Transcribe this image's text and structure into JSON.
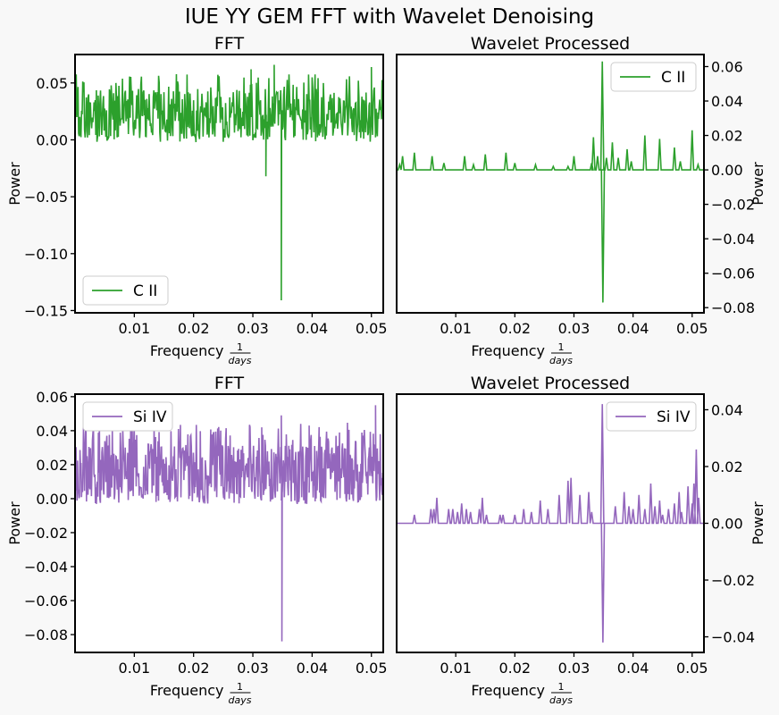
{
  "figure": {
    "title": "IUE YY GEM FFT with Wavelet Denoising"
  },
  "colors": {
    "cii": "#2ca02c",
    "siiv": "#9467bd"
  },
  "chart_data": [
    {
      "id": "p1",
      "type": "line",
      "title": "FFT",
      "legend_loc": "lower-left",
      "yaxis_side": "left",
      "xlabel": "Frequency",
      "xlabel_frac_num": "1",
      "xlabel_frac_den": "days",
      "ylabel": "Power",
      "xlim": [
        0.0,
        0.052
      ],
      "ylim": [
        -0.152,
        0.075
      ],
      "xticks": [
        0.01,
        0.02,
        0.03,
        0.04,
        0.05
      ],
      "xtick_labels": [
        "0.01",
        "0.02",
        "0.03",
        "0.04",
        "0.05"
      ],
      "yticks": [
        0.05,
        0.0,
        -0.05,
        -0.1,
        -0.15
      ],
      "ytick_labels": [
        "0.05",
        "0.00",
        "−0.05",
        "−0.10",
        "−0.15"
      ],
      "series": [
        {
          "name": "C II",
          "color": "#2ca02c",
          "kind": "noise",
          "mid": 0.022,
          "amp": 0.02,
          "n": 520,
          "seed": 7,
          "spikes": [
            [
              0.0322,
              -0.032
            ],
            [
              0.0336,
              0.066
            ],
            [
              0.0348,
              -0.141
            ],
            [
              0.05,
              0.064
            ],
            [
              0.0297,
              0.062
            ]
          ]
        }
      ]
    },
    {
      "id": "p2",
      "type": "line",
      "title": "Wavelet Processed",
      "legend_loc": "top-right",
      "yaxis_side": "right",
      "xlabel": "Frequency",
      "xlabel_frac_num": "1",
      "xlabel_frac_den": "days",
      "ylabel": "Power",
      "xlim": [
        0.0,
        0.052
      ],
      "ylim": [
        -0.083,
        0.067
      ],
      "xticks": [
        0.01,
        0.02,
        0.03,
        0.04,
        0.05
      ],
      "xtick_labels": [
        "0.01",
        "0.02",
        "0.03",
        "0.04",
        "0.05"
      ],
      "yticks": [
        0.06,
        0.04,
        0.02,
        0.0,
        -0.02,
        -0.04,
        -0.06,
        -0.08
      ],
      "ytick_labels": [
        "0.06",
        "0.04",
        "0.02",
        "0.00",
        "−0.02",
        "−0.04",
        "−0.06",
        "−0.08"
      ],
      "series": [
        {
          "name": "C II",
          "color": "#2ca02c",
          "kind": "peaks",
          "baseline": 0.0,
          "peaks": [
            [
              0.0005,
              0.003
            ],
            [
              0.001,
              0.008
            ],
            [
              0.003,
              0.01
            ],
            [
              0.006,
              0.008
            ],
            [
              0.008,
              0.004
            ],
            [
              0.0115,
              0.008
            ],
            [
              0.013,
              0.003
            ],
            [
              0.015,
              0.009
            ],
            [
              0.0185,
              0.01
            ],
            [
              0.02,
              0.004
            ],
            [
              0.0235,
              0.003
            ],
            [
              0.0265,
              0.002
            ],
            [
              0.029,
              0.002
            ],
            [
              0.03,
              0.008
            ],
            [
              0.033,
              0.004
            ],
            [
              0.034,
              0.008
            ],
            [
              0.0333,
              0.019
            ],
            [
              0.0348,
              0.063
            ],
            [
              0.0349,
              -0.077
            ],
            [
              0.0355,
              0.007
            ],
            [
              0.0365,
              0.016
            ],
            [
              0.0375,
              0.007
            ],
            [
              0.039,
              0.012
            ],
            [
              0.0397,
              0.005
            ],
            [
              0.042,
              0.02
            ],
            [
              0.0445,
              0.018
            ],
            [
              0.047,
              0.013
            ],
            [
              0.048,
              0.005
            ],
            [
              0.05,
              0.023
            ],
            [
              0.051,
              0.003
            ]
          ]
        }
      ]
    },
    {
      "id": "p3",
      "type": "line",
      "title": "FFT",
      "legend_loc": "top-left",
      "yaxis_side": "left",
      "xlabel": "Frequency",
      "xlabel_frac_num": "1",
      "xlabel_frac_den": "days",
      "ylabel": "Power",
      "xlim": [
        0.0,
        0.052
      ],
      "ylim": [
        -0.0905,
        0.0615
      ],
      "xticks": [
        0.01,
        0.02,
        0.03,
        0.04,
        0.05
      ],
      "xtick_labels": [
        "0.01",
        "0.02",
        "0.03",
        "0.04",
        "0.05"
      ],
      "yticks": [
        0.06,
        0.04,
        0.02,
        0.0,
        -0.02,
        -0.04,
        -0.06,
        -0.08
      ],
      "ytick_labels": [
        "0.06",
        "0.04",
        "0.02",
        "0.00",
        "−0.02",
        "−0.04",
        "−0.06",
        "−0.08"
      ],
      "series": [
        {
          "name": "Si IV",
          "color": "#9467bd",
          "kind": "noise",
          "mid": 0.016,
          "amp": 0.016,
          "n": 620,
          "seed": 13,
          "spikes": [
            [
              0.0348,
              0.049
            ],
            [
              0.0349,
              -0.084
            ],
            [
              0.0507,
              0.055
            ],
            [
              0.0395,
              0.043
            ],
            [
              0.0315,
              0.042
            ]
          ]
        }
      ]
    },
    {
      "id": "p4",
      "type": "line",
      "title": "Wavelet Processed",
      "legend_loc": "top-right",
      "yaxis_side": "right",
      "xlabel": "Frequency",
      "xlabel_frac_num": "1",
      "xlabel_frac_den": "days",
      "ylabel": "Power",
      "xlim": [
        0.0,
        0.052
      ],
      "ylim": [
        -0.0455,
        0.0455
      ],
      "xticks": [
        0.01,
        0.02,
        0.03,
        0.04,
        0.05
      ],
      "xtick_labels": [
        "0.01",
        "0.02",
        "0.03",
        "0.04",
        "0.05"
      ],
      "yticks": [
        0.04,
        0.02,
        0.0,
        -0.02,
        -0.04
      ],
      "ytick_labels": [
        "0.04",
        "0.02",
        "0.00",
        "−0.02",
        "−0.04"
      ],
      "series": [
        {
          "name": "Si IV",
          "color": "#9467bd",
          "kind": "peaks",
          "baseline": 0.0,
          "peaks": [
            [
              0.003,
              0.003
            ],
            [
              0.0058,
              0.005
            ],
            [
              0.0063,
              0.005
            ],
            [
              0.0068,
              0.009
            ],
            [
              0.0088,
              0.005
            ],
            [
              0.0095,
              0.005
            ],
            [
              0.0103,
              0.004
            ],
            [
              0.011,
              0.007
            ],
            [
              0.0118,
              0.005
            ],
            [
              0.0125,
              0.004
            ],
            [
              0.014,
              0.005
            ],
            [
              0.0145,
              0.009
            ],
            [
              0.0152,
              0.003
            ],
            [
              0.0175,
              0.003
            ],
            [
              0.018,
              0.003
            ],
            [
              0.02,
              0.003
            ],
            [
              0.0215,
              0.005
            ],
            [
              0.0228,
              0.004
            ],
            [
              0.0243,
              0.008
            ],
            [
              0.0256,
              0.005
            ],
            [
              0.0275,
              0.01
            ],
            [
              0.029,
              0.015
            ],
            [
              0.0295,
              0.016
            ],
            [
              0.031,
              0.01
            ],
            [
              0.0325,
              0.011
            ],
            [
              0.033,
              0.004
            ],
            [
              0.0348,
              0.042
            ],
            [
              0.0349,
              -0.042
            ],
            [
              0.037,
              0.006
            ],
            [
              0.0385,
              0.011
            ],
            [
              0.0393,
              0.006
            ],
            [
              0.04,
              0.005
            ],
            [
              0.041,
              0.01
            ],
            [
              0.042,
              0.005
            ],
            [
              0.043,
              0.014
            ],
            [
              0.0437,
              0.006
            ],
            [
              0.0445,
              0.008
            ],
            [
              0.045,
              0.003
            ],
            [
              0.046,
              0.005
            ],
            [
              0.047,
              0.007
            ],
            [
              0.0478,
              0.011
            ],
            [
              0.0482,
              0.004
            ],
            [
              0.0493,
              0.013
            ],
            [
              0.05,
              0.007
            ],
            [
              0.0503,
              0.014
            ],
            [
              0.0507,
              0.026
            ],
            [
              0.0511,
              0.009
            ]
          ]
        }
      ]
    }
  ]
}
